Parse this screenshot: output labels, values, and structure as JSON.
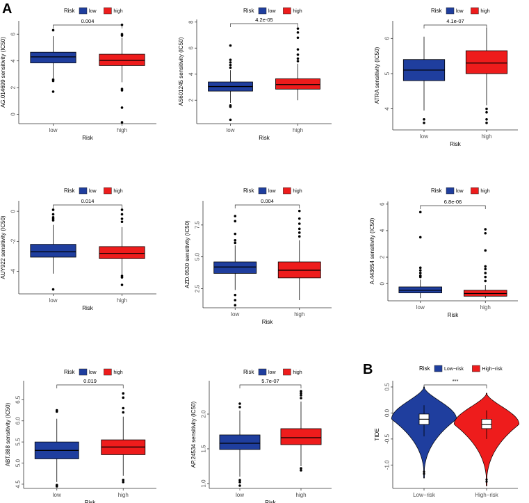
{
  "figure": {
    "label_a": "A",
    "label_b": "B"
  },
  "colors": {
    "low": "#1f3e9e",
    "high": "#ee1c1c",
    "axis": "#333333",
    "outlier": "#000000",
    "tide_box": "#ffffff"
  },
  "chart_data": [
    {
      "type": "boxplot",
      "ylabel": "AG.014699 sensitivity (IC50)",
      "xlabel": "Risk",
      "categories": [
        "low",
        "high"
      ],
      "legend_title": "Risk",
      "legend_labels": [
        "low",
        "high"
      ],
      "ylim": [
        -0.7,
        7.0
      ],
      "yticks": [
        0,
        2,
        4,
        6
      ],
      "ytick_labels": [
        "0",
        "2",
        "4",
        "6"
      ],
      "pvalue": "0.004",
      "boxes": [
        {
          "group": "low",
          "q1": 3.85,
          "median": 4.3,
          "q3": 4.65,
          "whisker_low": 2.7,
          "whisker_high": 5.85,
          "outliers": [
            6.3,
            2.6,
            2.5,
            1.7
          ]
        },
        {
          "group": "high",
          "q1": 3.65,
          "median": 4.05,
          "q3": 4.5,
          "whisker_low": 2.4,
          "whisker_high": 5.75,
          "outliers": [
            6.7,
            6.0,
            5.9,
            1.9,
            1.8,
            0.5,
            -0.6
          ]
        }
      ]
    },
    {
      "type": "boxplot",
      "ylabel": "AS601245 sensitivity (IC50)",
      "xlabel": "Risk",
      "categories": [
        "low",
        "high"
      ],
      "legend_title": "Risk",
      "legend_labels": [
        "low",
        "high"
      ],
      "ylim": [
        0.2,
        8.2
      ],
      "yticks": [
        2,
        4,
        6,
        8
      ],
      "ytick_labels": [
        "2",
        "4",
        "6",
        "8"
      ],
      "pvalue": "4.2e-05",
      "boxes": [
        {
          "group": "low",
          "q1": 2.7,
          "median": 3.05,
          "q3": 3.4,
          "whisker_low": 1.8,
          "whisker_high": 4.3,
          "outliers": [
            6.2,
            5.1,
            4.9,
            4.7,
            4.5,
            1.6,
            1.5,
            0.5
          ]
        },
        {
          "group": "high",
          "q1": 2.85,
          "median": 3.2,
          "q3": 3.65,
          "whisker_low": 2.0,
          "whisker_high": 4.8,
          "outliers": [
            7.5,
            7.2,
            6.8,
            5.9,
            5.5,
            5.2,
            5.0
          ]
        }
      ]
    },
    {
      "type": "boxplot",
      "ylabel": "ATRA sensitivity (IC50)",
      "xlabel": "Risk",
      "categories": [
        "low",
        "high"
      ],
      "legend_title": "Risk",
      "legend_labels": [
        "low",
        "high"
      ],
      "ylim": [
        3.4,
        6.5
      ],
      "yticks": [
        4,
        5,
        6
      ],
      "ytick_labels": [
        "4",
        "5",
        "6"
      ],
      "pvalue": "4.1e-07",
      "boxes": [
        {
          "group": "low",
          "q1": 4.8,
          "median": 5.1,
          "q3": 5.4,
          "whisker_low": 3.95,
          "whisker_high": 6.05,
          "outliers": [
            3.7,
            3.6
          ]
        },
        {
          "group": "high",
          "q1": 5.0,
          "median": 5.3,
          "q3": 5.65,
          "whisker_low": 4.1,
          "whisker_high": 6.3,
          "outliers": [
            4.0,
            3.9,
            3.7,
            3.6
          ]
        }
      ]
    },
    {
      "type": "boxplot",
      "ylabel": "AUY922 sensitivity (IC50)",
      "xlabel": "Risk",
      "categories": [
        "low",
        "high"
      ],
      "legend_title": "Risk",
      "legend_labels": [
        "low",
        "high"
      ],
      "ylim": [
        -5.5,
        0.7
      ],
      "yticks": [
        -4,
        -2,
        0
      ],
      "ytick_labels": [
        "-4",
        "-2",
        "0"
      ],
      "pvalue": "0.014",
      "boxes": [
        {
          "group": "low",
          "q1": -3.05,
          "median": -2.7,
          "q3": -2.2,
          "whisker_low": -4.15,
          "whisker_high": -0.9,
          "outliers": [
            0.1,
            -0.2,
            -0.4,
            -0.5,
            -0.6,
            -5.2
          ]
        },
        {
          "group": "high",
          "q1": -3.15,
          "median": -2.8,
          "q3": -2.35,
          "whisker_low": -4.2,
          "whisker_high": -1.05,
          "outliers": [
            0.1,
            -0.2,
            -0.5,
            -0.7,
            -4.3,
            -4.4,
            -4.9
          ]
        }
      ]
    },
    {
      "type": "boxplot",
      "ylabel": "AZD.0530 sensitivity (IC50)",
      "xlabel": "Risk",
      "categories": [
        "low",
        "high"
      ],
      "legend_title": "Risk",
      "legend_labels": [
        "low",
        "high"
      ],
      "ylim": [
        1.0,
        9.4
      ],
      "yticks": [
        2.5,
        5.0,
        7.5
      ],
      "ytick_labels": [
        "2.5",
        "5.0",
        "7.5"
      ],
      "pvalue": "0.004",
      "boxes": [
        {
          "group": "low",
          "q1": 3.7,
          "median": 4.2,
          "q3": 4.6,
          "whisker_low": 2.4,
          "whisker_high": 5.9,
          "outliers": [
            8.2,
            7.8,
            6.8,
            6.3,
            6.1,
            2.0,
            1.6,
            1.2
          ]
        },
        {
          "group": "high",
          "q1": 3.35,
          "median": 3.95,
          "q3": 4.6,
          "whisker_low": 1.6,
          "whisker_high": 6.3,
          "outliers": [
            8.6,
            8.0,
            7.6,
            7.2,
            6.9,
            6.6
          ]
        }
      ]
    },
    {
      "type": "boxplot",
      "ylabel": "A.443654 sensitivity (IC50)",
      "xlabel": "Risk",
      "categories": [
        "low",
        "high"
      ],
      "legend_title": "Risk",
      "legend_labels": [
        "low",
        "high"
      ],
      "ylim": [
        -1.3,
        6.2
      ],
      "yticks": [
        0,
        2,
        4,
        6
      ],
      "ytick_labels": [
        "0",
        "2",
        "4",
        "6"
      ],
      "pvalue": "6.8e-06",
      "boxes": [
        {
          "group": "low",
          "q1": -0.7,
          "median": -0.5,
          "q3": -0.25,
          "whisker_low": -1.1,
          "whisker_high": 0.3,
          "outliers": [
            5.4,
            3.5,
            1.2,
            1.0,
            0.8,
            0.6,
            0.5
          ]
        },
        {
          "group": "high",
          "q1": -0.95,
          "median": -0.75,
          "q3": -0.5,
          "whisker_low": -1.1,
          "whisker_high": -0.1,
          "outliers": [
            4.1,
            3.8,
            2.5,
            1.3,
            1.1,
            0.8,
            0.5,
            0.2
          ]
        }
      ]
    },
    {
      "type": "boxplot",
      "ylabel": "ABT.888 sensitivity (IC50)",
      "xlabel": "Risk",
      "categories": [
        "low",
        "high"
      ],
      "legend_title": "Risk",
      "legend_labels": [
        "low",
        "high"
      ],
      "ylim": [
        4.4,
        6.95
      ],
      "yticks": [
        4.5,
        5.0,
        5.5,
        6.0,
        6.5
      ],
      "ytick_labels": [
        "4.5",
        "5.0",
        "5.5",
        "6.0",
        "6.5"
      ],
      "pvalue": "0.019",
      "boxes": [
        {
          "group": "low",
          "q1": 5.1,
          "median": 5.3,
          "q3": 5.5,
          "whisker_low": 4.55,
          "whisker_high": 6.05,
          "outliers": [
            6.25,
            6.22,
            4.48,
            4.45
          ]
        },
        {
          "group": "high",
          "q1": 5.2,
          "median": 5.38,
          "q3": 5.55,
          "whisker_low": 4.7,
          "whisker_high": 6.1,
          "outliers": [
            6.65,
            6.55,
            6.3,
            6.2,
            4.6,
            4.55
          ]
        }
      ]
    },
    {
      "type": "boxplot",
      "ylabel": "AP.24534 sensitivity (IC50)",
      "xlabel": "Risk",
      "categories": [
        "low",
        "high"
      ],
      "legend_title": "Risk",
      "legend_labels": [
        "low",
        "high"
      ],
      "ylim": [
        0.93,
        2.48
      ],
      "yticks": [
        1.0,
        1.5,
        2.0
      ],
      "ytick_labels": [
        "1.0",
        "1.5",
        "2.0"
      ],
      "pvalue": "5.7e-07",
      "boxes": [
        {
          "group": "low",
          "q1": 1.49,
          "median": 1.58,
          "q3": 1.7,
          "whisker_low": 1.1,
          "whisker_high": 2.05,
          "outliers": [
            2.15,
            2.1,
            1.05,
            1.02,
            0.97
          ]
        },
        {
          "group": "high",
          "q1": 1.56,
          "median": 1.66,
          "q3": 1.79,
          "whisker_low": 1.25,
          "whisker_high": 2.18,
          "outliers": [
            2.33,
            2.3,
            2.27,
            2.23,
            1.22,
            1.19
          ]
        }
      ]
    },
    {
      "type": "violin",
      "ylabel": "TIDE",
      "xlabel": "",
      "categories": [
        "Low−risk",
        "High−risk"
      ],
      "legend_title": "Risk",
      "legend_labels": [
        "Low−risk",
        "High−risk"
      ],
      "ylim": [
        -1.45,
        0.62
      ],
      "yticks": [
        -1.0,
        -0.5,
        0.0,
        0.5
      ],
      "ytick_labels": [
        "-1.0",
        "-0.5",
        "0.0",
        "0.5"
      ],
      "pvalue": "***",
      "groups": [
        {
          "group": "Low−risk",
          "q1": -0.22,
          "median": -0.12,
          "q3": -0.02,
          "whisker_low": -0.45,
          "whisker_high": 0.15,
          "min": -1.25,
          "max": 0.5
        },
        {
          "group": "High−risk",
          "q1": -0.3,
          "median": -0.22,
          "q3": -0.12,
          "whisker_low": -0.5,
          "whisker_high": 0.05,
          "min": -1.4,
          "max": 0.38
        }
      ]
    }
  ]
}
